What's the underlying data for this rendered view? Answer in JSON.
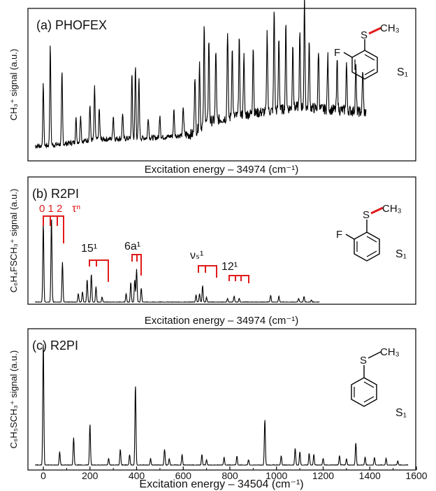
{
  "colors": {
    "annotation": "#e01b1b",
    "trace": "#000000",
    "frame": "#000000",
    "arrow": "#e01b1b"
  },
  "axes": {
    "xlabel_bottom": "Excitation energy – 34504 (cm⁻¹)",
    "xlabel_middle": "Excitation energy – 34974 (cm⁻¹)",
    "x_ticks": [
      "0",
      "200",
      "400",
      "600",
      "800",
      "1000",
      "1200",
      "1400",
      "1600"
    ]
  },
  "panels": {
    "a": {
      "label": "(a) PHOFEX",
      "ylabel": "CH₃⁺ signal (a.u.)",
      "state": "S₁",
      "substituent_F": "F",
      "substituent_S": "S",
      "substituent_CH3": "CH₃"
    },
    "b": {
      "label": "(b) R2PI",
      "ylabel": "C₆H₄FSCH₃⁺ signal (a.u.)",
      "state": "S₁",
      "substituent_F": "F",
      "substituent_S": "S",
      "substituent_CH3": "CH₃",
      "progression_numbers": "0 1  2",
      "progression_tau": "τⁿ",
      "band_15": "15¹",
      "band_6a": "6a¹",
      "band_nu": "νₛ¹",
      "band_12": "12¹"
    },
    "c": {
      "label": "(c) R2PI",
      "ylabel": "C₆H₅SCH₃⁺ signal (a.u.)",
      "state": "S₁",
      "substituent_S": "S",
      "substituent_CH3": "CH₃"
    }
  },
  "chart_data": [
    {
      "type": "line",
      "panel": "a",
      "title": "(a) PHOFEX",
      "xlabel": "Excitation energy – 34974 (cm⁻¹)",
      "ylabel": "CH₃⁺ signal (a.u.)",
      "xlim": [
        -35,
        1600
      ],
      "ylim": [
        0,
        1
      ],
      "grid": false,
      "x_end": 1385,
      "background": [
        [
          -35,
          0.02
        ],
        [
          0,
          0.02
        ],
        [
          100,
          0.04
        ],
        [
          200,
          0.07
        ],
        [
          300,
          0.08
        ],
        [
          500,
          0.09
        ],
        [
          640,
          0.12
        ],
        [
          700,
          0.22
        ],
        [
          850,
          0.28
        ],
        [
          1000,
          0.32
        ],
        [
          1100,
          0.35
        ],
        [
          1200,
          0.33
        ],
        [
          1300,
          0.32
        ],
        [
          1385,
          0.3
        ]
      ],
      "peaks": [
        [
          0,
          0.52
        ],
        [
          30,
          0.84
        ],
        [
          80,
          0.6
        ],
        [
          140,
          0.2
        ],
        [
          160,
          0.23
        ],
        [
          200,
          0.3
        ],
        [
          220,
          0.44
        ],
        [
          240,
          0.26
        ],
        [
          300,
          0.2
        ],
        [
          340,
          0.22
        ],
        [
          380,
          0.54
        ],
        [
          395,
          0.61
        ],
        [
          410,
          0.5
        ],
        [
          450,
          0.18
        ],
        [
          500,
          0.2
        ],
        [
          560,
          0.22
        ],
        [
          600,
          0.25
        ],
        [
          650,
          0.5
        ],
        [
          670,
          0.55
        ],
        [
          690,
          0.83
        ],
        [
          710,
          0.7
        ],
        [
          740,
          0.6
        ],
        [
          790,
          0.75
        ],
        [
          810,
          0.6
        ],
        [
          840,
          0.65
        ],
        [
          860,
          0.5
        ],
        [
          900,
          0.58
        ],
        [
          960,
          0.68
        ],
        [
          990,
          0.86
        ],
        [
          1010,
          0.62
        ],
        [
          1040,
          0.7
        ],
        [
          1070,
          0.55
        ],
        [
          1100,
          0.62
        ],
        [
          1120,
          0.9
        ],
        [
          1140,
          0.55
        ],
        [
          1180,
          0.5
        ],
        [
          1220,
          0.45
        ],
        [
          1260,
          0.42
        ],
        [
          1300,
          0.4
        ],
        [
          1340,
          0.38
        ],
        [
          1370,
          0.36
        ]
      ]
    },
    {
      "type": "line",
      "panel": "b",
      "title": "(b) R2PI",
      "xlabel": "Excitation energy – 34974 (cm⁻¹)",
      "ylabel": "C₆H₄FSCH₃⁺ signal (a.u.)",
      "xlim": [
        -35,
        1600
      ],
      "ylim": [
        0,
        1
      ],
      "grid": false,
      "x_end": 1185,
      "peaks": [
        [
          0,
          0.67
        ],
        [
          35,
          0.71
        ],
        [
          82,
          0.34
        ],
        [
          150,
          0.07
        ],
        [
          168,
          0.09
        ],
        [
          188,
          0.19
        ],
        [
          206,
          0.24
        ],
        [
          226,
          0.13
        ],
        [
          252,
          0.04
        ],
        [
          355,
          0.07
        ],
        [
          375,
          0.17
        ],
        [
          392,
          0.19
        ],
        [
          400,
          0.28
        ],
        [
          420,
          0.12
        ],
        [
          655,
          0.06
        ],
        [
          670,
          0.07
        ],
        [
          683,
          0.14
        ],
        [
          700,
          0.04
        ],
        [
          790,
          0.03
        ],
        [
          818,
          0.05
        ],
        [
          840,
          0.03
        ],
        [
          975,
          0.06
        ],
        [
          1010,
          0.05
        ],
        [
          1095,
          0.03
        ],
        [
          1118,
          0.05
        ],
        [
          1150,
          0.02
        ]
      ]
    },
    {
      "type": "line",
      "panel": "c",
      "title": "(c) R2PI",
      "xlabel": "Excitation energy – 34504 (cm⁻¹)",
      "ylabel": "C₆H₅SCH₃⁺ signal (a.u.)",
      "xlim": [
        -35,
        1600
      ],
      "ylim": [
        0,
        1
      ],
      "grid": false,
      "x_end": 1565,
      "x_ticks": [
        0,
        200,
        400,
        600,
        800,
        1000,
        1200,
        1400,
        1600
      ],
      "peaks": [
        [
          0,
          0.93
        ],
        [
          70,
          0.1
        ],
        [
          130,
          0.21
        ],
        [
          200,
          0.31
        ],
        [
          280,
          0.05
        ],
        [
          330,
          0.12
        ],
        [
          370,
          0.08
        ],
        [
          395,
          0.61
        ],
        [
          460,
          0.05
        ],
        [
          520,
          0.12
        ],
        [
          540,
          0.05
        ],
        [
          595,
          0.08
        ],
        [
          680,
          0.08
        ],
        [
          700,
          0.04
        ],
        [
          775,
          0.06
        ],
        [
          830,
          0.07
        ],
        [
          880,
          0.04
        ],
        [
          950,
          0.35
        ],
        [
          1020,
          0.07
        ],
        [
          1080,
          0.13
        ],
        [
          1100,
          0.1
        ],
        [
          1140,
          0.09
        ],
        [
          1160,
          0.08
        ],
        [
          1200,
          0.05
        ],
        [
          1270,
          0.07
        ],
        [
          1300,
          0.05
        ],
        [
          1340,
          0.17
        ],
        [
          1380,
          0.06
        ],
        [
          1420,
          0.06
        ],
        [
          1470,
          0.05
        ],
        [
          1520,
          0.03
        ]
      ]
    }
  ]
}
